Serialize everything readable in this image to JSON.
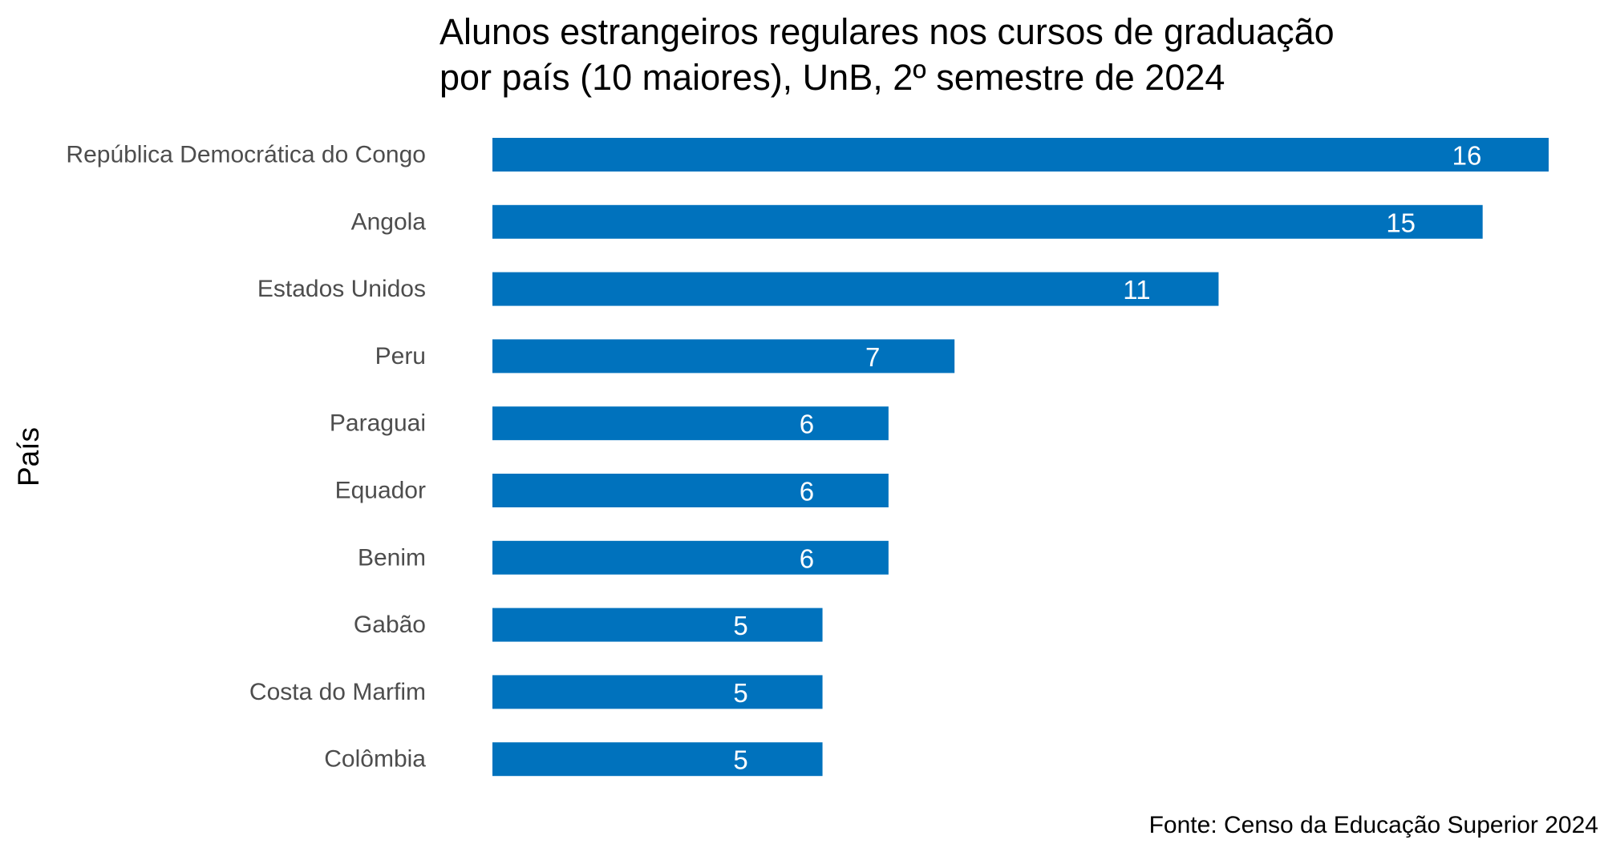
{
  "chart_data": {
    "type": "bar",
    "orientation": "horizontal",
    "title_lines": [
      "Alunos estrangeiros regulares nos cursos de graduação",
      "por país (10 maiores), UnB, 2º semestre de 2024"
    ],
    "ylabel": "País",
    "xlabel": "",
    "categories": [
      "República Democrática do Congo",
      "Angola",
      "Estados Unidos",
      "Peru",
      "Paraguai",
      "Equador",
      "Benim",
      "Gabão",
      "Costa do Marfim",
      "Colômbia"
    ],
    "values": [
      16,
      15,
      11,
      7,
      6,
      6,
      6,
      5,
      5,
      5
    ],
    "xlim": [
      0,
      16
    ],
    "grid": false,
    "bar_color": "#0072BD",
    "value_label_color": "#FFFFFF",
    "caption": "Fonte: Censo da Educação Superior 2024"
  }
}
